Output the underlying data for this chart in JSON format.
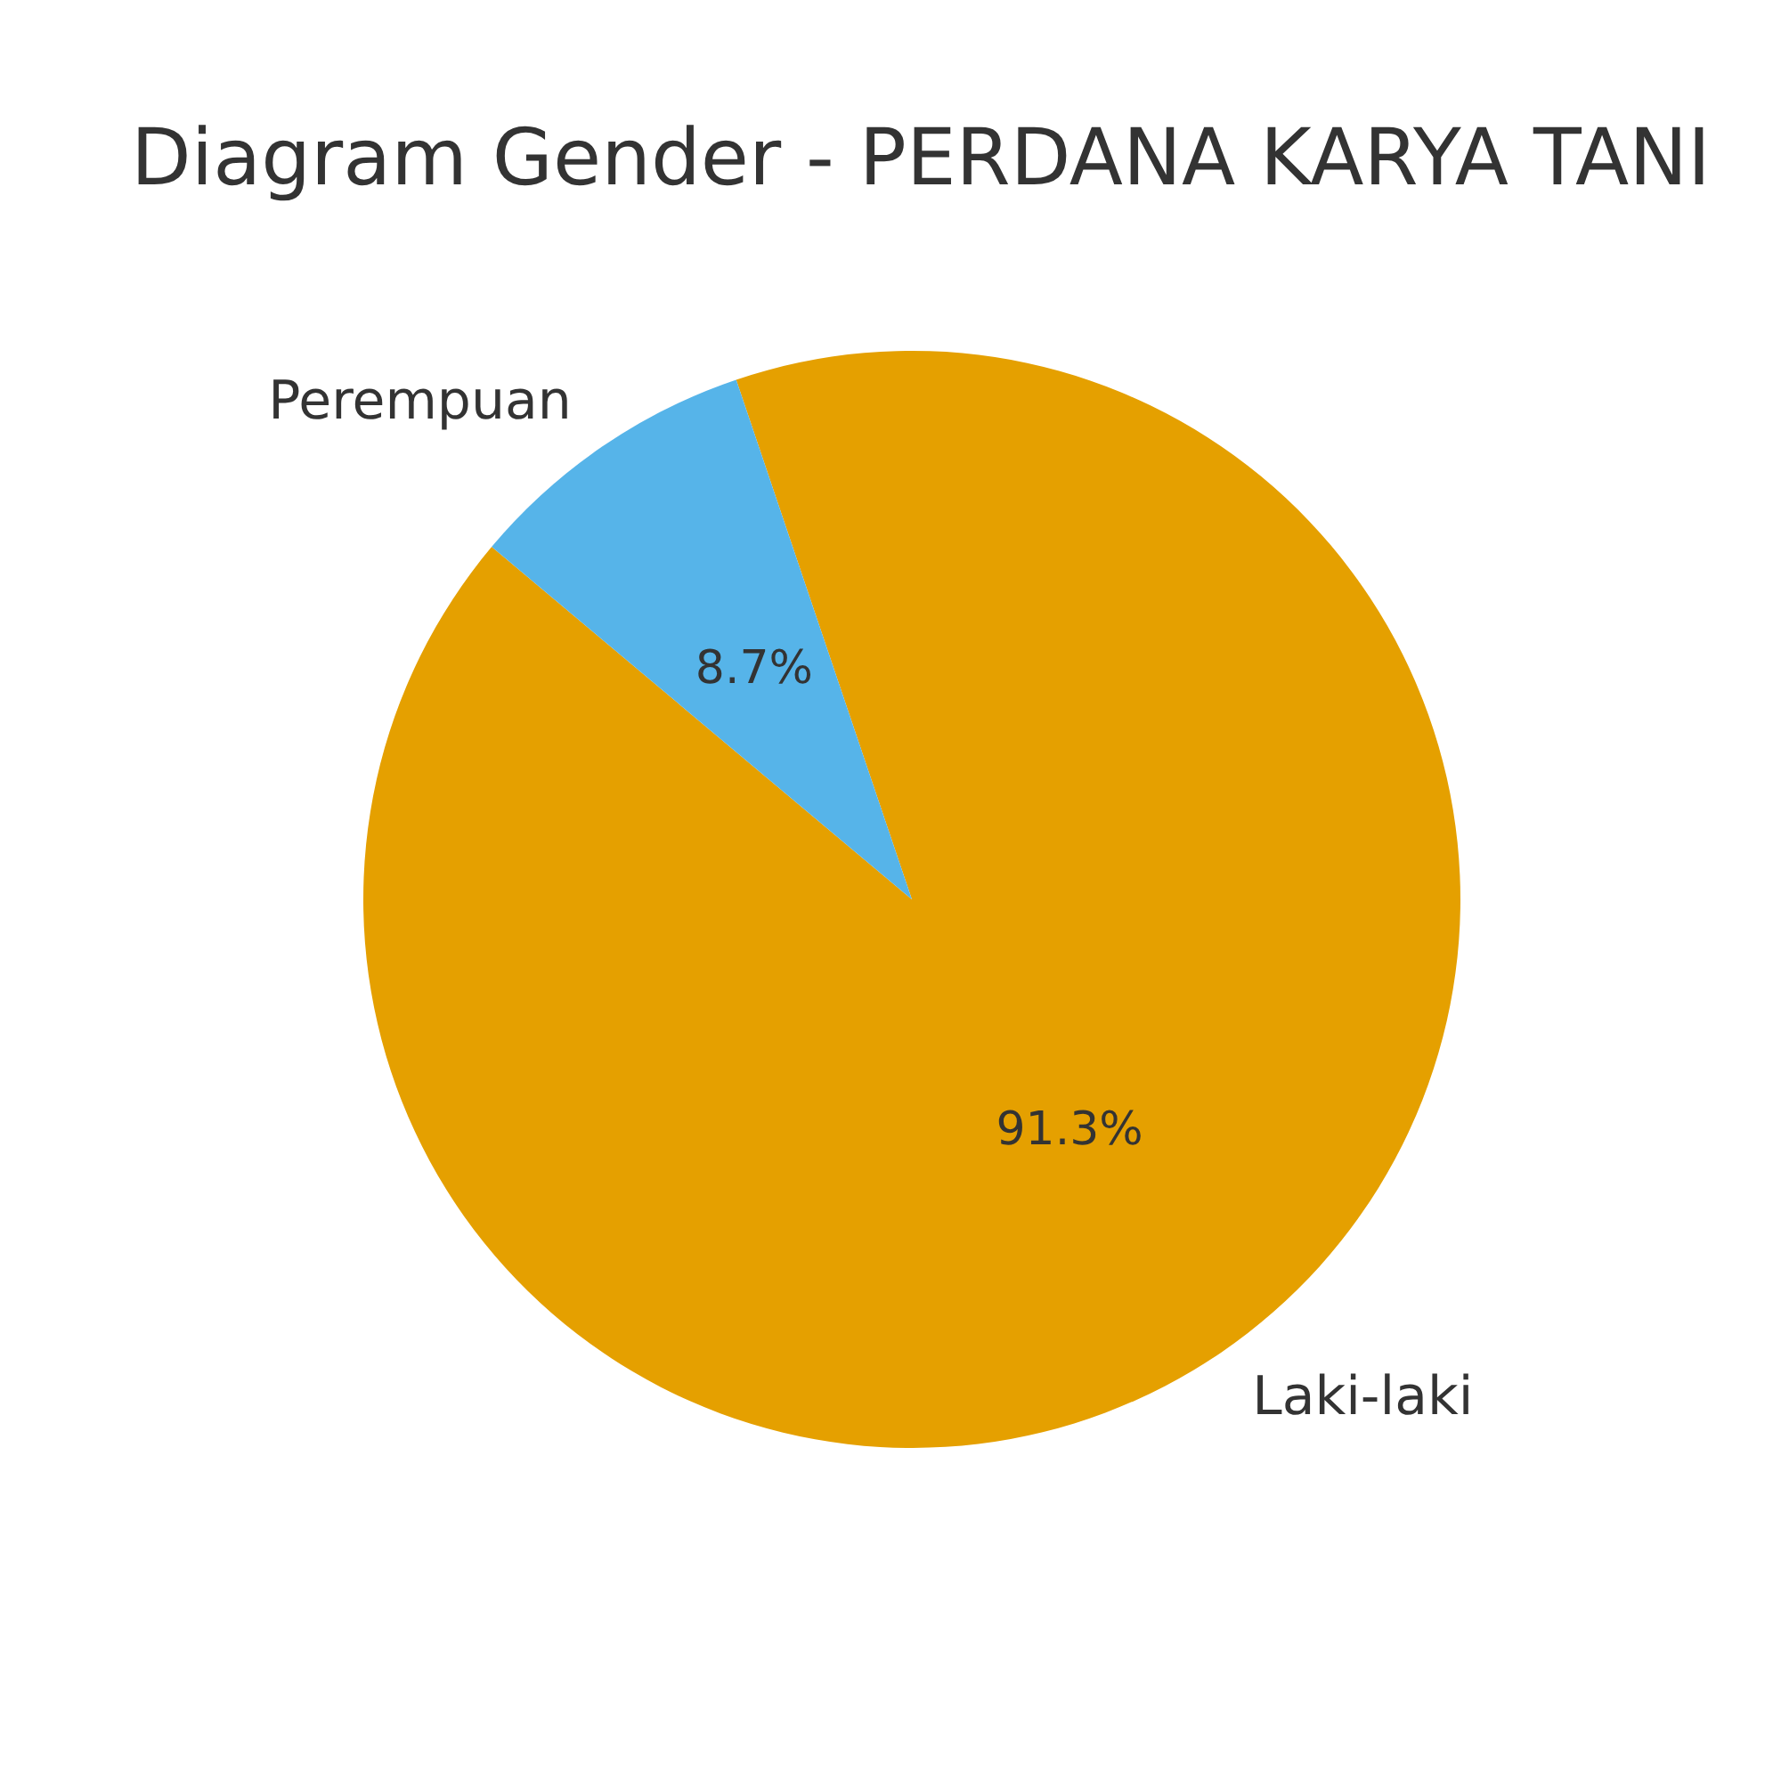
{
  "chart_data": {
    "type": "pie",
    "title": "Diagram Gender - PERDANA KARYA TANI",
    "categories": [
      "Laki-laki",
      "Perempuan"
    ],
    "values": [
      91.3,
      8.7
    ],
    "colors": [
      "#e5a000",
      "#56b4e9"
    ],
    "value_labels": [
      "91.3%",
      "8.7%"
    ],
    "legend": false
  }
}
